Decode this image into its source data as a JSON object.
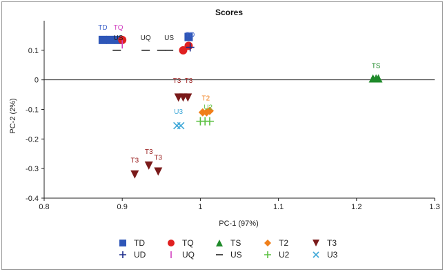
{
  "chart_data": {
    "type": "scatter",
    "title": "Scores",
    "xlabel": "PC-1 (97%)",
    "ylabel": "PC-2 (2%)",
    "xlim": [
      0.8,
      1.3
    ],
    "ylim": [
      -0.4,
      0.2
    ],
    "xticks": [
      "0.8",
      "0.9",
      "1",
      "1.1",
      "1.2",
      "1.3"
    ],
    "xtick_values": [
      0.8,
      0.9,
      1.0,
      1.1,
      1.2,
      1.3
    ],
    "yticks": [
      "0.1",
      "0",
      "-0.1",
      "-0.2",
      "-0.3",
      "-0.4"
    ],
    "ytick_values": [
      0.1,
      0.0,
      -0.1,
      -0.2,
      -0.3,
      -0.4
    ],
    "zero_line": true,
    "grid": false,
    "legend_position": "bottom",
    "series": [
      {
        "name": "TD",
        "marker": "square",
        "color": "#2e56b8",
        "label_color": "#3a5fc8",
        "points": [
          [
            0.875,
            0.135
          ],
          [
            0.885,
            0.135
          ],
          [
            0.895,
            0.135
          ],
          [
            0.985,
            0.145
          ]
        ]
      },
      {
        "name": "TQ",
        "marker": "circle",
        "color": "#e02020",
        "label_color": "#d040c0",
        "points": [
          [
            0.9,
            0.135
          ],
          [
            0.978,
            0.1
          ],
          [
            0.985,
            0.115
          ]
        ]
      },
      {
        "name": "TS",
        "marker": "triangle-up",
        "color": "#1f8a2a",
        "label_color": "#1f8a2a",
        "points": [
          [
            1.221,
            0.005
          ],
          [
            1.225,
            0.005
          ],
          [
            1.228,
            0.005
          ]
        ]
      },
      {
        "name": "T2",
        "marker": "diamond",
        "color": "#f07f1a",
        "label_color": "#f07f1a",
        "points": [
          [
            1.003,
            -0.11
          ],
          [
            1.008,
            -0.11
          ],
          [
            1.012,
            -0.105
          ]
        ]
      },
      {
        "name": "T3",
        "marker": "triangle-down",
        "color": "#7a1a1a",
        "label_color": "#9a2020",
        "points": [
          [
            0.916,
            -0.32
          ],
          [
            0.934,
            -0.29
          ],
          [
            0.946,
            -0.31
          ],
          [
            0.972,
            -0.06
          ],
          [
            0.978,
            -0.06
          ],
          [
            0.984,
            -0.06
          ]
        ]
      },
      {
        "name": "UD",
        "marker": "plus",
        "color": "#1a2a8a",
        "label_color": "#1a2a8a",
        "points": [
          [
            0.987,
            0.11
          ]
        ]
      },
      {
        "name": "UQ",
        "marker": "vbar",
        "color": "#d040c0",
        "label_color": "#d040c0",
        "points": [
          [
            0.9,
            0.12
          ]
        ]
      },
      {
        "name": "US",
        "marker": "hbar",
        "color": "#222222",
        "label_color": "#222222",
        "points": [
          [
            0.893,
            0.1
          ],
          [
            0.93,
            0.1
          ],
          [
            0.95,
            0.1
          ],
          [
            0.96,
            0.1
          ]
        ]
      },
      {
        "name": "U2",
        "marker": "plus",
        "color": "#5ac040",
        "label_color": "#5ac040",
        "points": [
          [
            1.0,
            -0.14
          ],
          [
            1.006,
            -0.14
          ],
          [
            1.012,
            -0.14
          ]
        ]
      },
      {
        "name": "U3",
        "marker": "x",
        "color": "#3fa8d8",
        "label_color": "#3fa8d8",
        "points": [
          [
            0.97,
            -0.155
          ],
          [
            0.975,
            -0.155
          ]
        ]
      }
    ],
    "point_labels": [
      {
        "text": "TD",
        "x": 0.875,
        "y": 0.17,
        "series": "TD"
      },
      {
        "text": "TQ",
        "x": 0.895,
        "y": 0.17,
        "series": "TQ"
      },
      {
        "text": "US",
        "x": 0.895,
        "y": 0.135,
        "series": "US"
      },
      {
        "text": "UQ",
        "x": 0.93,
        "y": 0.135,
        "series": "US"
      },
      {
        "text": "US",
        "x": 0.96,
        "y": 0.135,
        "series": "US"
      },
      {
        "text": "TD",
        "x": 0.987,
        "y": 0.145,
        "series": "TD"
      },
      {
        "text": "TS",
        "x": 1.225,
        "y": 0.04,
        "series": "TS"
      },
      {
        "text": "T3",
        "x": 0.97,
        "y": -0.01,
        "series": "T3"
      },
      {
        "text": "T3",
        "x": 0.985,
        "y": -0.01,
        "series": "T3"
      },
      {
        "text": "T2",
        "x": 1.007,
        "y": -0.07,
        "series": "T2"
      },
      {
        "text": "U2",
        "x": 1.01,
        "y": -0.1,
        "series": "U2"
      },
      {
        "text": "U3",
        "x": 0.972,
        "y": -0.115,
        "series": "U3"
      },
      {
        "text": "T3",
        "x": 0.916,
        "y": -0.28,
        "series": "T3"
      },
      {
        "text": "T3",
        "x": 0.934,
        "y": -0.25,
        "series": "T3"
      },
      {
        "text": "T3",
        "x": 0.946,
        "y": -0.27,
        "series": "T3"
      }
    ],
    "legend": [
      [
        "TD",
        "TQ",
        "TS",
        "T2",
        "T3"
      ],
      [
        "UD",
        "UQ",
        "US",
        "U2",
        "U3"
      ]
    ]
  }
}
